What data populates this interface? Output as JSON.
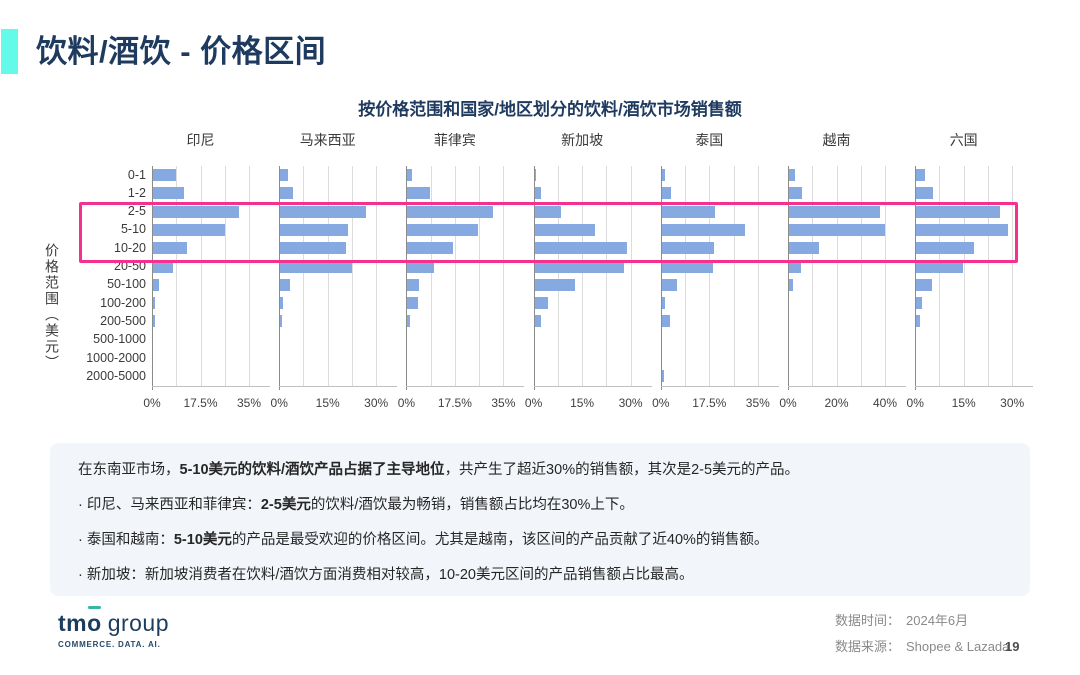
{
  "page": {
    "title": "饮料/酒饮 - 价格区间",
    "page_number": "19"
  },
  "chart_data": {
    "type": "bar",
    "orientation": "horizontal",
    "title": "按价格范围和国家/地区划分的饮料/酒饮市场销售额",
    "ylabel": "价格范围（美元）",
    "unit": "%",
    "grid": true,
    "bar_color": "#87A9E1",
    "categories": [
      "0-1",
      "1-2",
      "2-5",
      "5-10",
      "10-20",
      "20-50",
      "50-100",
      "100-200",
      "200-500",
      "500-1000",
      "1000-2000",
      "2000-5000"
    ],
    "panels": [
      {
        "id": "indonesia",
        "label": "印尼",
        "ticks": [
          "0%",
          "17.5%",
          "35%"
        ],
        "max": 35,
        "values": [
          8.4,
          11.3,
          31.0,
          26.0,
          12.3,
          7.2,
          2.1,
          0.5,
          0.7,
          0,
          0,
          0
        ]
      },
      {
        "id": "malaysia",
        "label": "马来西亚",
        "ticks": [
          "0%",
          "15%",
          "30%"
        ],
        "max": 30,
        "values": [
          2.4,
          3.9,
          26.5,
          20.9,
          20.3,
          22.2,
          2.9,
          0.8,
          0.3,
          0,
          0,
          0
        ]
      },
      {
        "id": "philippines",
        "label": "菲律宾",
        "ticks": [
          "0%",
          "17.5%",
          "35%"
        ],
        "max": 35,
        "values": [
          1.8,
          8.0,
          31.0,
          25.3,
          16.5,
          9.5,
          4.2,
          3.9,
          0.8,
          0,
          0,
          0
        ]
      },
      {
        "id": "singapore",
        "label": "新加坡",
        "ticks": [
          "0%",
          "15%",
          "30%"
        ],
        "max": 30,
        "values": [
          0.3,
          1.9,
          8.3,
          18.7,
          28.6,
          27.5,
          12.5,
          4.2,
          1.9,
          0,
          0,
          0
        ]
      },
      {
        "id": "thailand",
        "label": "泰国",
        "ticks": [
          "0%",
          "17.5%",
          "35%"
        ],
        "max": 35,
        "values": [
          1.3,
          3.5,
          19.1,
          30.2,
          18.7,
          18.3,
          5.4,
          1.3,
          2.8,
          0,
          0,
          0.7
        ]
      },
      {
        "id": "vietnam",
        "label": "越南",
        "ticks": [
          "0%",
          "20%",
          "40%"
        ],
        "max": 40,
        "values": [
          2.3,
          5.2,
          37.7,
          39.6,
          12.4,
          5.0,
          1.5,
          0,
          0,
          0,
          0,
          0
        ]
      },
      {
        "id": "six-countries",
        "label": "六国",
        "ticks": [
          "0%",
          "15%",
          "30%"
        ],
        "max": 30,
        "values": [
          2.7,
          5.2,
          25.9,
          28.4,
          17.9,
          14.4,
          4.9,
          1.9,
          1.3,
          0,
          0,
          0
        ]
      }
    ],
    "highlight": {
      "rows": [
        "2-5",
        "5-10",
        "10-20"
      ],
      "color": "#F5318F"
    }
  },
  "insights": {
    "lines": [
      {
        "prefix": "在东南亚市场，",
        "bold": "5-10美元的饮料/酒饮产品占据了主导地位",
        "suffix": "，共产生了超近30%的销售额，其次是2-5美元的产品。"
      },
      {
        "prefix": "· 印尼、马来西亚和菲律宾：",
        "bold": "2-5美元",
        "suffix": "的饮料/酒饮最为畅销，销售额占比均在30%上下。"
      },
      {
        "prefix": "· 泰国和越南：",
        "bold": "5-10美元",
        "suffix": "的产品是最受欢迎的价格区间。尤其是越南，该区间的产品贡献了近40%的销售额。"
      },
      {
        "prefix": "· 新加坡：",
        "bold": "",
        "suffix": "新加坡消费者在饮料/酒饮方面消费相对较高，10-20美元区间的产品销售额占比最高。"
      }
    ]
  },
  "footer": {
    "logo_t": "tm",
    "logo_o": "o",
    "logo_suffix": "group",
    "tagline": "COMMERCE. DATA. AI.",
    "data_time_label": "数据时间：",
    "data_time_value": "2024年6月",
    "data_source_label": "数据来源：",
    "data_source_value": "Shopee & Lazada"
  },
  "colors": {
    "title_navy": "#1E3A5F",
    "accent_cyan": "#63FAEA",
    "bar_blue": "#87A9E1",
    "highlight_pink": "#F5318F",
    "insight_bg": "#F2F5F9"
  }
}
